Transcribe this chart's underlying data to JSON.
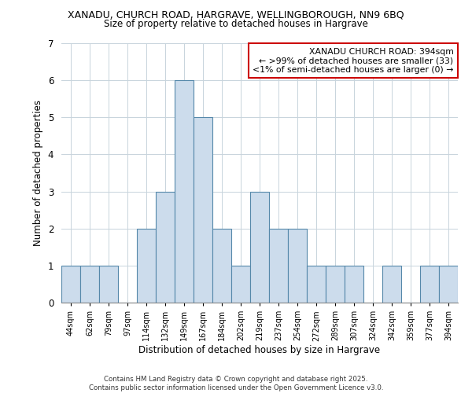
{
  "title_line1": "XANADU, CHURCH ROAD, HARGRAVE, WELLINGBOROUGH, NN9 6BQ",
  "title_line2": "Size of property relative to detached houses in Hargrave",
  "xlabel": "Distribution of detached houses by size in Hargrave",
  "ylabel": "Number of detached properties",
  "bin_labels": [
    "44sqm",
    "62sqm",
    "79sqm",
    "97sqm",
    "114sqm",
    "132sqm",
    "149sqm",
    "167sqm",
    "184sqm",
    "202sqm",
    "219sqm",
    "237sqm",
    "254sqm",
    "272sqm",
    "289sqm",
    "307sqm",
    "324sqm",
    "342sqm",
    "359sqm",
    "377sqm",
    "394sqm"
  ],
  "bar_heights": [
    1,
    1,
    1,
    0,
    2,
    3,
    6,
    5,
    2,
    1,
    3,
    2,
    2,
    1,
    1,
    1,
    0,
    1,
    0,
    1,
    1
  ],
  "bar_color": "#ccdcec",
  "bar_edge_color": "#5588aa",
  "ylim": [
    0,
    7
  ],
  "yticks": [
    0,
    1,
    2,
    3,
    4,
    5,
    6,
    7
  ],
  "annotation_title": "XANADU CHURCH ROAD: 394sqm",
  "annotation_line2": "← >99% of detached houses are smaller (33)",
  "annotation_line3": "<1% of semi-detached houses are larger (0) →",
  "annotation_box_color": "#ffffff",
  "annotation_box_edge_color": "#cc0000",
  "footer_line1": "Contains HM Land Registry data © Crown copyright and database right 2025.",
  "footer_line2": "Contains public sector information licensed under the Open Government Licence v3.0.",
  "bg_color": "#ffffff",
  "grid_color": "#c8d4dc"
}
